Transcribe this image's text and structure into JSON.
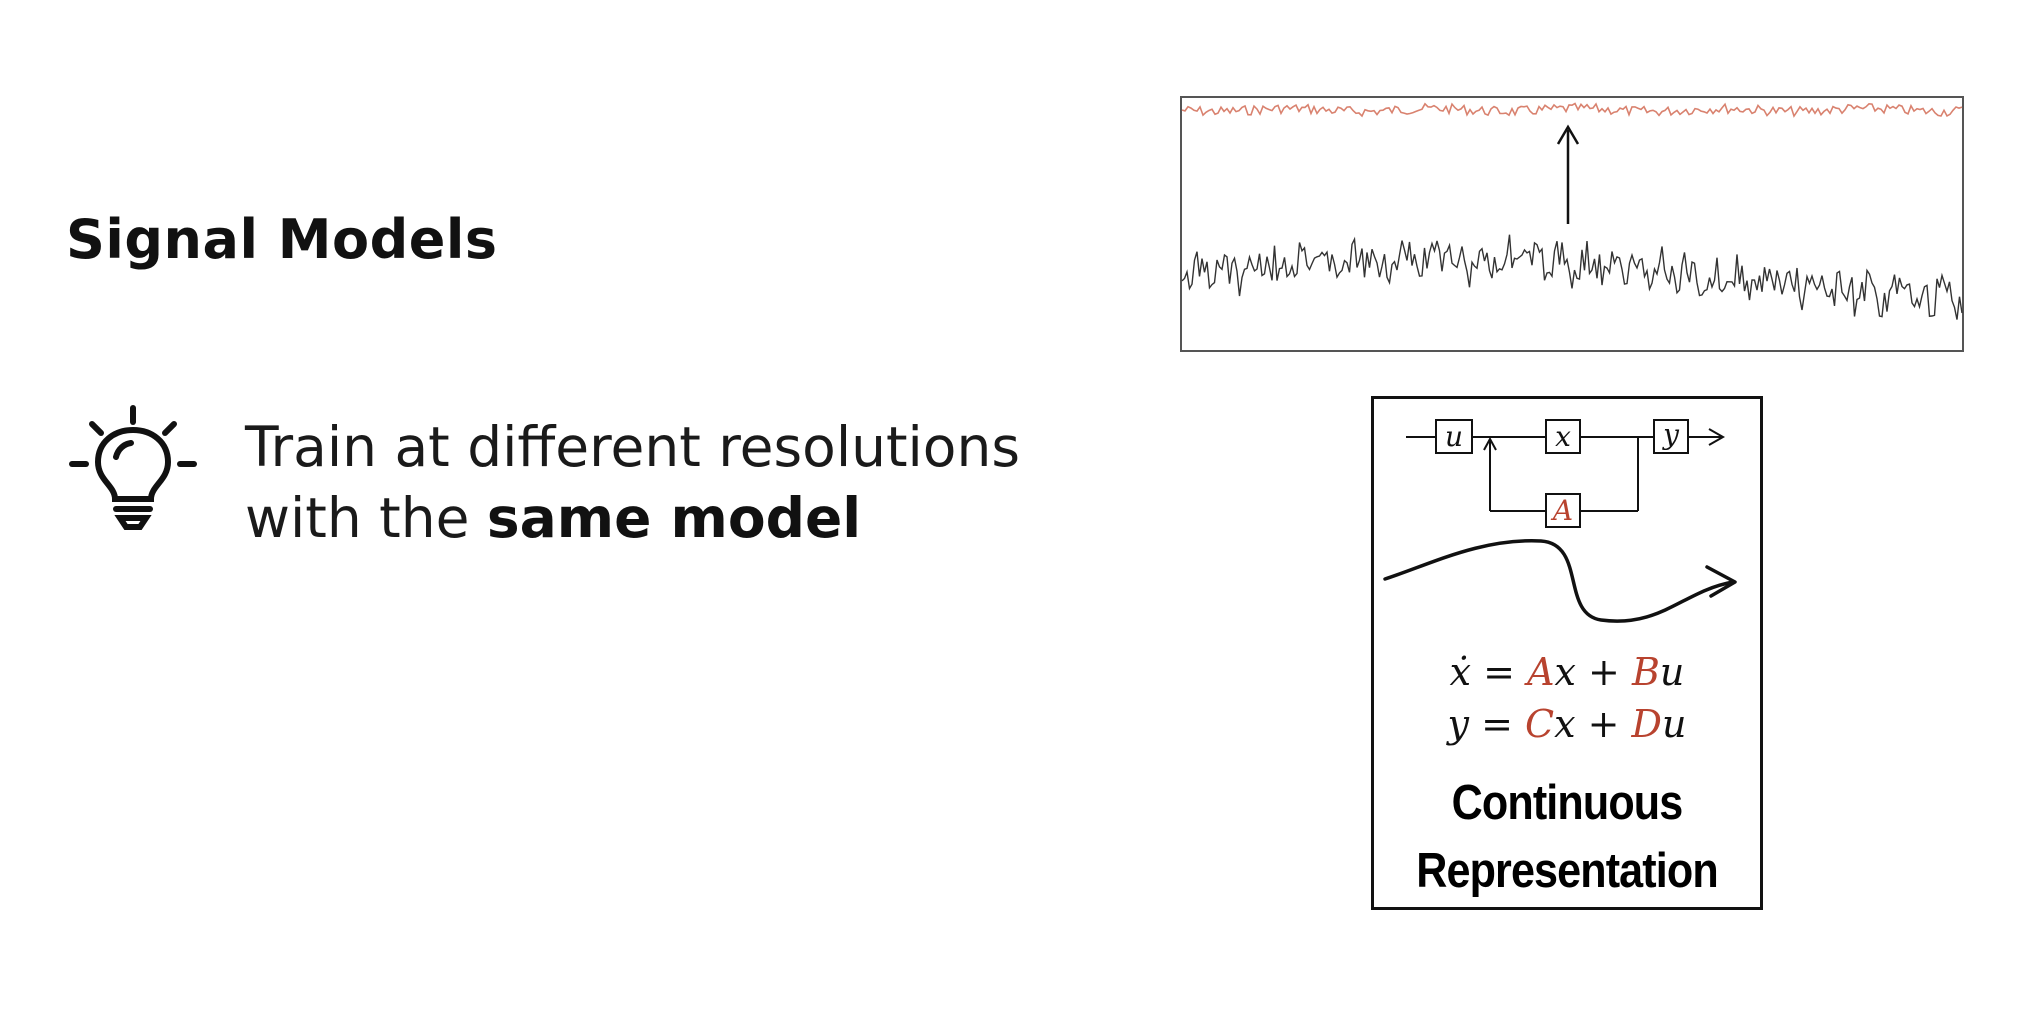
{
  "slide": {
    "title": "Signal Models",
    "bullet": {
      "text_line1": "Train at different resolutions",
      "text_line2_prefix": "with the ",
      "text_line2_bold": "same model",
      "icon": "lightbulb-icon"
    }
  },
  "diagram": {
    "block_labels": {
      "input": "u",
      "state": "x",
      "output": "y",
      "matrix": "A"
    },
    "equation_1": {
      "lhs": "ẋ",
      "eq": "=",
      "m1": "A",
      "v1": "x",
      "plus": "+",
      "m2": "B",
      "v2": "u"
    },
    "equation_2": {
      "lhs": "y",
      "eq": "=",
      "m1": "C",
      "v1": "x",
      "plus": "+",
      "m2": "D",
      "v2": "u"
    },
    "caption_line1": "Continuous",
    "caption_line2": "Representation"
  },
  "colors": {
    "accent_red": "#b8432f",
    "signal_red": "#d9826f",
    "signal_dark": "#333333",
    "text": "#111111"
  }
}
